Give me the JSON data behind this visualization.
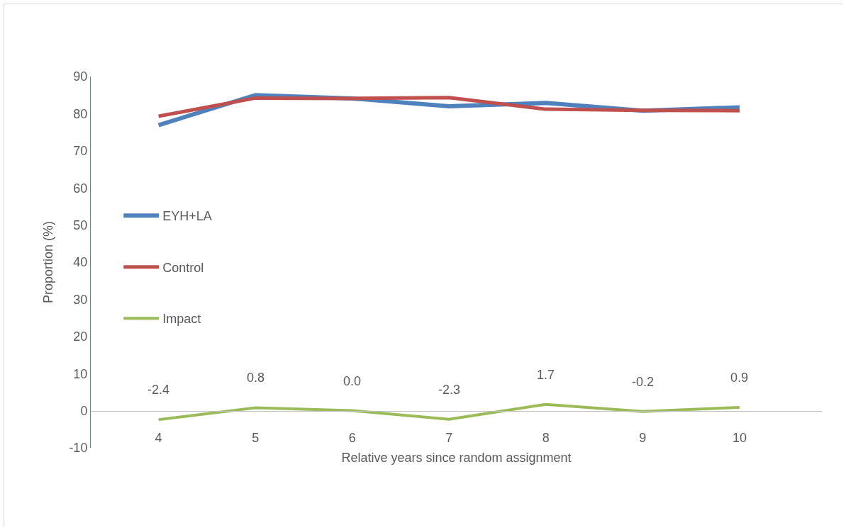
{
  "chart_data": {
    "type": "line",
    "xlabel": "Relative years since random assignment",
    "ylabel": "Proportion (%)",
    "categories": [
      "4",
      "5",
      "6",
      "7",
      "8",
      "9",
      "10"
    ],
    "series": [
      {
        "name": "EYH+LA",
        "color": "#4f81bd",
        "values": [
          76.9,
          85.0,
          84.1,
          82.0,
          82.9,
          80.8,
          81.7
        ]
      },
      {
        "name": "Control",
        "color": "#c0504d",
        "values": [
          79.3,
          84.2,
          84.1,
          84.3,
          81.2,
          80.9,
          80.8
        ]
      },
      {
        "name": "Impact",
        "color": "#9bbb59",
        "values": [
          -2.4,
          0.8,
          0.0,
          -2.3,
          1.7,
          -0.2,
          0.9
        ],
        "value_labels": [
          "-2.4",
          "0.8",
          "0.0",
          "-2.3",
          "1.7",
          "-0.2",
          "0.9"
        ]
      }
    ],
    "ylim": [
      -10,
      90
    ],
    "yticks": [
      -10,
      0,
      10,
      20,
      30,
      40,
      50,
      60,
      70,
      80,
      90
    ],
    "grid": false,
    "legend": "left",
    "marker": "none",
    "line_style": "solid"
  }
}
